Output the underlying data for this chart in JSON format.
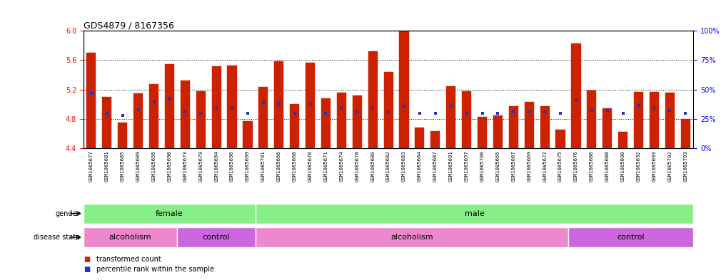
{
  "title": "GDS4879 / 8167356",
  "samples": [
    "GSM1085677",
    "GSM1085681",
    "GSM1085685",
    "GSM1085689",
    "GSM1085695",
    "GSM1085698",
    "GSM1085673",
    "GSM1085679",
    "GSM1085694",
    "GSM1085696",
    "GSM1085699",
    "GSM1085701",
    "GSM1085666",
    "GSM1085668",
    "GSM1085670",
    "GSM1085671",
    "GSM1085674",
    "GSM1085678",
    "GSM1085680",
    "GSM1085682",
    "GSM1085683",
    "GSM1085684",
    "GSM1085687",
    "GSM1085691",
    "GSM1085697",
    "GSM1085700",
    "GSM1085665",
    "GSM1085667",
    "GSM1085669",
    "GSM1085672",
    "GSM1085675",
    "GSM1085676",
    "GSM1085686",
    "GSM1085688",
    "GSM1085690",
    "GSM1085692",
    "GSM1085693",
    "GSM1085702",
    "GSM1085703"
  ],
  "transformed_count": [
    5.7,
    5.1,
    4.75,
    5.15,
    5.28,
    5.55,
    5.32,
    5.18,
    5.52,
    5.53,
    4.77,
    5.24,
    5.59,
    5.0,
    5.57,
    5.08,
    5.16,
    5.12,
    5.72,
    5.44,
    6.02,
    4.68,
    4.64,
    5.25,
    5.18,
    4.83,
    4.85,
    4.97,
    5.03,
    4.97,
    4.65,
    5.83,
    5.19,
    4.95,
    4.63,
    5.17,
    5.17,
    5.16,
    4.8
  ],
  "percentile_rank_y": [
    5.15,
    4.88,
    4.85,
    4.93,
    5.03,
    5.07,
    4.9,
    4.88,
    4.95,
    4.95,
    4.88,
    5.02,
    5.0,
    4.88,
    5.0,
    4.88,
    4.95,
    4.9,
    4.95,
    4.9,
    4.97,
    4.88,
    4.88,
    4.97,
    4.88,
    4.88,
    4.88,
    4.9,
    4.9,
    4.9,
    4.88,
    5.05,
    4.92,
    4.92,
    4.88,
    4.98,
    4.95,
    4.92,
    4.88
  ],
  "y_min": 4.4,
  "y_max": 6.0,
  "yticks": [
    4.4,
    4.8,
    5.2,
    5.6,
    6.0
  ],
  "right_yticks_pct": [
    0,
    25,
    50,
    75,
    100
  ],
  "bar_color": "#cc2200",
  "dot_color": "#2233bb",
  "green_color": "#88ee88",
  "alc_color": "#ee88cc",
  "ctrl_color": "#cc66dd",
  "gender_groups": [
    {
      "label": "female",
      "start": 0,
      "end": 11
    },
    {
      "label": "male",
      "start": 11,
      "end": 39
    }
  ],
  "disease_groups": [
    {
      "label": "alcoholism",
      "start": 0,
      "end": 6,
      "type": "alc"
    },
    {
      "label": "control",
      "start": 6,
      "end": 11,
      "type": "ctrl"
    },
    {
      "label": "alcoholism",
      "start": 11,
      "end": 31,
      "type": "alc"
    },
    {
      "label": "control",
      "start": 31,
      "end": 39,
      "type": "ctrl"
    }
  ]
}
